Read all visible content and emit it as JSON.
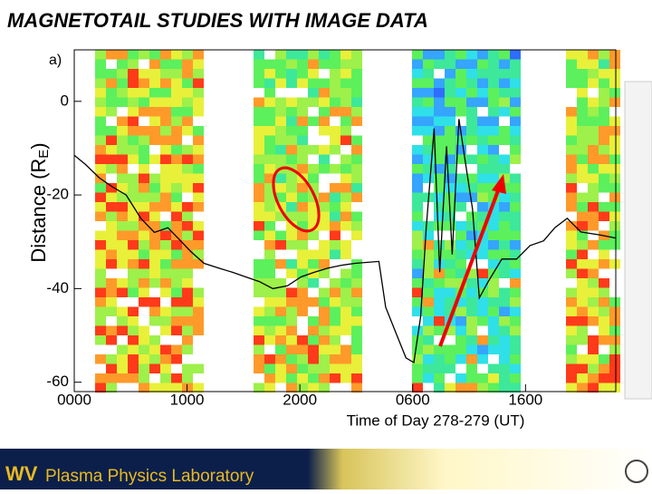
{
  "slide_title": "MAGNETOTAIL STUDIES WITH IMAGE DATA",
  "footer": {
    "lab_name": "Plasma Physics Laboratory"
  },
  "chart_data": {
    "type": "line",
    "panel_label": "a)",
    "y_label": "Distance (R",
    "y_label_subscript": "E",
    "y_label_close": ")",
    "x_label": "Time of Day 278-279 (UT)",
    "xlim": [
      0,
      48
    ],
    "ylim": [
      -62,
      11
    ],
    "xticks": [
      {
        "value": 0,
        "label": "0000"
      },
      {
        "value": 10,
        "label": "1000"
      },
      {
        "value": 20,
        "label": "2000"
      },
      {
        "value": 30,
        "label": "0600"
      },
      {
        "value": 40,
        "label": "1600"
      }
    ],
    "yticks": [
      0,
      -20,
      -40,
      -60
    ],
    "series": [
      {
        "color": "#000000",
        "x": [
          0,
          1,
          2.2,
          3.4,
          4.6,
          5.9,
          7.1,
          8.3,
          9.5,
          10.3,
          11.5,
          12.8,
          14,
          15.2,
          16.4,
          17.6,
          18.9,
          20.1,
          21.3,
          22.5,
          23.7,
          24.9,
          27,
          27.6,
          28.6,
          29.4,
          30.1,
          30.7,
          31.2,
          31.9,
          32.4,
          33,
          33.5,
          34.1,
          34.7,
          35.3,
          35.9,
          36.7,
          37.9,
          39.2,
          40.4,
          41.6,
          42.6,
          43.7,
          44.9,
          46.5,
          48
        ],
        "values": [
          -11.5,
          -13.5,
          -16.3,
          -18.3,
          -20,
          -25,
          -28,
          -27,
          -30,
          -32,
          -34.6,
          -35.6,
          -36.5,
          -37.5,
          -38.5,
          -40,
          -39.4,
          -37.5,
          -36.5,
          -35.6,
          -35,
          -34.6,
          -34.2,
          -44,
          -50,
          -54.8,
          -55.8,
          -46,
          -27,
          -5.8,
          -36.5,
          -9.6,
          -32.7,
          -3.8,
          -13.5,
          -23,
          -42,
          -38.5,
          -33.7,
          -33.7,
          -30.8,
          -29.8,
          -27,
          -25,
          -27.9,
          -28.5,
          -29.2
        ]
      }
    ]
  }
}
